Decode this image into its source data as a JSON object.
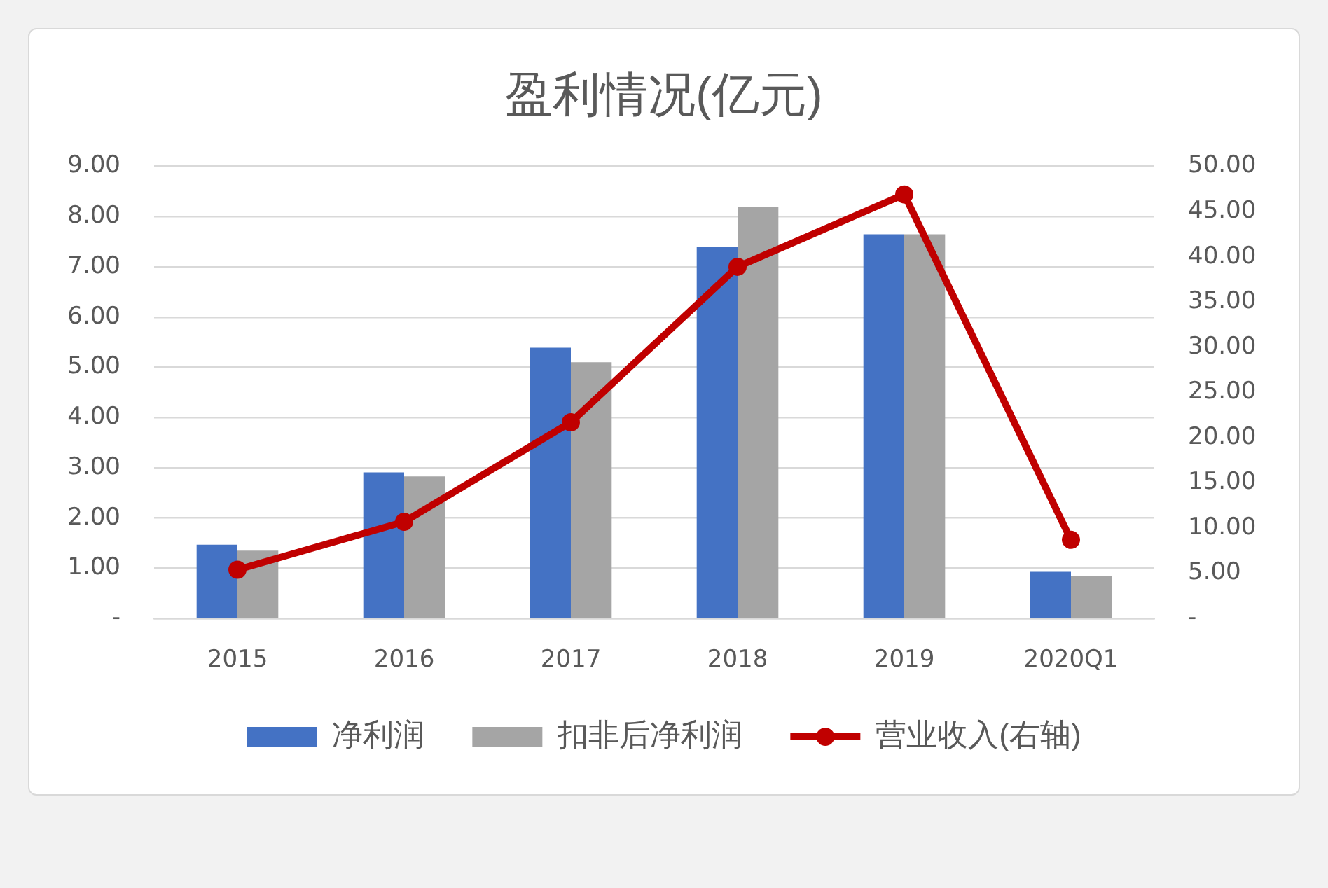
{
  "chart_data": {
    "type": "bar",
    "title": "盈利情况(亿元)",
    "categories": [
      "2015",
      "2016",
      "2017",
      "2018",
      "2019",
      "2020Q1"
    ],
    "series": [
      {
        "name": "净利润",
        "color": "#4472c4",
        "values": [
          1.47,
          2.91,
          5.39,
          7.4,
          7.65,
          0.93
        ]
      },
      {
        "name": "扣非后净利润",
        "color": "#a5a5a5",
        "values": [
          1.35,
          2.83,
          5.1,
          8.19,
          7.65,
          0.85
        ]
      },
      {
        "name": "营业收入(右轴)",
        "type": "line",
        "axis": "y2",
        "color": "#c00000",
        "values": [
          5.4,
          10.7,
          21.7,
          38.9,
          46.9,
          8.7
        ]
      }
    ],
    "ylim": [
      0,
      9
    ],
    "yticks": [
      {
        "value": 0,
        "label": "-"
      },
      {
        "value": 1,
        "label": "1.00"
      },
      {
        "value": 2,
        "label": "2.00"
      },
      {
        "value": 3,
        "label": "3.00"
      },
      {
        "value": 4,
        "label": "4.00"
      },
      {
        "value": 5,
        "label": "5.00"
      },
      {
        "value": 6,
        "label": "6.00"
      },
      {
        "value": 7,
        "label": "7.00"
      },
      {
        "value": 8,
        "label": "8.00"
      },
      {
        "value": 9,
        "label": "9.00"
      }
    ],
    "y2lim": [
      0,
      50
    ],
    "y2ticks": [
      {
        "value": 0,
        "label": "-"
      },
      {
        "value": 5,
        "label": "5.00"
      },
      {
        "value": 10,
        "label": "10.00"
      },
      {
        "value": 15,
        "label": "15.00"
      },
      {
        "value": 20,
        "label": "20.00"
      },
      {
        "value": 25,
        "label": "25.00"
      },
      {
        "value": 30,
        "label": "30.00"
      },
      {
        "value": 35,
        "label": "35.00"
      },
      {
        "value": 40,
        "label": "40.00"
      },
      {
        "value": 45,
        "label": "45.00"
      },
      {
        "value": 50,
        "label": "50.00"
      }
    ],
    "grid": "y",
    "legend": "bottom",
    "marker": "circle",
    "line_style": "solid"
  }
}
